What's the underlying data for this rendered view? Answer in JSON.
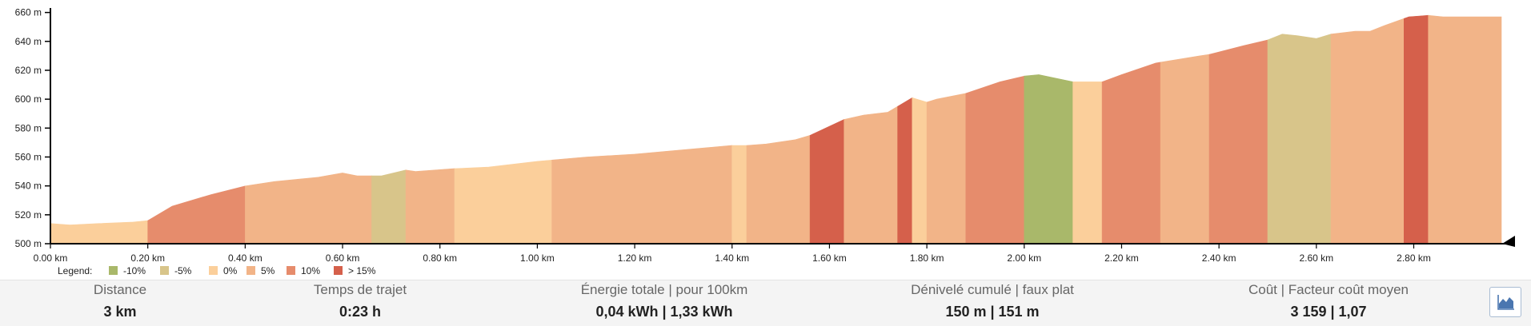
{
  "chart_data": {
    "type": "area",
    "title": "",
    "xlabel": "",
    "ylabel": "",
    "x_unit": "km",
    "y_unit": "m",
    "xlim": [
      0,
      2.98
    ],
    "ylim": [
      500,
      662
    ],
    "x_ticks": [
      "0.00 km",
      "0.20 km",
      "0.40 km",
      "0.60 km",
      "0.80 km",
      "1.00 km",
      "1.20 km",
      "1.40 km",
      "1.60 km",
      "1.80 km",
      "2.00 km",
      "2.20 km",
      "2.40 km",
      "2.60 km",
      "2.80 km"
    ],
    "y_ticks": [
      "500 m",
      "520 m",
      "540 m",
      "560 m",
      "580 m",
      "600 m",
      "620 m",
      "640 m",
      "660 m"
    ],
    "legend": {
      "title": "Legend:",
      "items": [
        {
          "label": "-10%",
          "color": "#a9b86a"
        },
        {
          "label": "-5%",
          "color": "#d8c58a"
        },
        {
          "label": "0%",
          "color": "#fbcf9b"
        },
        {
          "label": "5%",
          "color": "#f2b488"
        },
        {
          "label": "10%",
          "color": "#e68c6c"
        },
        {
          "label": "> 15%",
          "color": "#d5604b"
        }
      ]
    },
    "profile": [
      [
        0.0,
        514
      ],
      [
        0.04,
        513
      ],
      [
        0.1,
        514
      ],
      [
        0.17,
        515
      ],
      [
        0.2,
        516
      ],
      [
        0.25,
        526
      ],
      [
        0.33,
        534
      ],
      [
        0.4,
        540
      ],
      [
        0.46,
        543
      ],
      [
        0.55,
        546
      ],
      [
        0.6,
        549
      ],
      [
        0.63,
        547
      ],
      [
        0.68,
        547
      ],
      [
        0.73,
        551
      ],
      [
        0.75,
        550
      ],
      [
        0.83,
        552
      ],
      [
        0.9,
        553
      ],
      [
        1.0,
        557
      ],
      [
        1.1,
        560
      ],
      [
        1.2,
        562
      ],
      [
        1.3,
        565
      ],
      [
        1.4,
        568
      ],
      [
        1.43,
        568
      ],
      [
        1.47,
        569
      ],
      [
        1.53,
        572
      ],
      [
        1.56,
        575
      ],
      [
        1.63,
        586
      ],
      [
        1.67,
        589
      ],
      [
        1.72,
        591
      ],
      [
        1.77,
        601
      ],
      [
        1.77,
        596
      ],
      [
        1.8,
        598
      ],
      [
        1.82,
        600
      ],
      [
        1.88,
        604
      ],
      [
        1.95,
        612
      ],
      [
        2.0,
        616
      ],
      [
        2.03,
        617
      ],
      [
        2.1,
        612
      ],
      [
        2.16,
        612
      ],
      [
        2.2,
        617
      ],
      [
        2.27,
        625
      ],
      [
        2.36,
        630
      ],
      [
        2.38,
        631
      ],
      [
        2.45,
        637
      ],
      [
        2.5,
        641
      ],
      [
        2.53,
        645
      ],
      [
        2.56,
        644
      ],
      [
        2.6,
        642
      ],
      [
        2.63,
        645
      ],
      [
        2.68,
        647
      ],
      [
        2.71,
        647
      ],
      [
        2.74,
        651
      ],
      [
        2.79,
        657
      ],
      [
        2.83,
        658
      ],
      [
        2.86,
        657
      ],
      [
        2.98,
        657
      ]
    ],
    "segments": [
      [
        0.0,
        0.04,
        "0%"
      ],
      [
        0.04,
        0.2,
        "0%"
      ],
      [
        0.2,
        0.4,
        "10%"
      ],
      [
        0.4,
        0.66,
        "5%"
      ],
      [
        0.66,
        0.73,
        "-5%"
      ],
      [
        0.73,
        0.83,
        "5%"
      ],
      [
        0.83,
        1.03,
        "0%"
      ],
      [
        1.03,
        1.4,
        "5%"
      ],
      [
        1.4,
        1.43,
        "0%"
      ],
      [
        1.43,
        1.56,
        "5%"
      ],
      [
        1.56,
        1.63,
        "> 15%"
      ],
      [
        1.63,
        1.74,
        "5%"
      ],
      [
        1.74,
        1.77,
        "> 15%"
      ],
      [
        1.77,
        1.8,
        "0%"
      ],
      [
        1.8,
        1.88,
        "5%"
      ],
      [
        1.88,
        2.0,
        "10%"
      ],
      [
        2.0,
        2.1,
        "-10%"
      ],
      [
        2.1,
        2.16,
        "0%"
      ],
      [
        2.16,
        2.28,
        "10%"
      ],
      [
        2.28,
        2.38,
        "5%"
      ],
      [
        2.38,
        2.5,
        "10%"
      ],
      [
        2.5,
        2.63,
        "-5%"
      ],
      [
        2.63,
        2.78,
        "5%"
      ],
      [
        2.78,
        2.83,
        "> 15%"
      ],
      [
        2.83,
        2.98,
        "5%"
      ]
    ]
  },
  "stats": [
    {
      "label": "Distance",
      "value": "3 km"
    },
    {
      "label": "Temps de trajet",
      "value": "0:23 h"
    },
    {
      "label": "Énergie totale | pour 100km",
      "value": "0,04 kWh | 1,33 kWh"
    },
    {
      "label": "Dénivelé cumulé | faux plat",
      "value": "150 m | 151 m"
    },
    {
      "label": "Coût | Facteur coût moyen",
      "value": "3 159 | 1,07"
    }
  ],
  "profile_button": {
    "icon": "area-chart-icon"
  }
}
